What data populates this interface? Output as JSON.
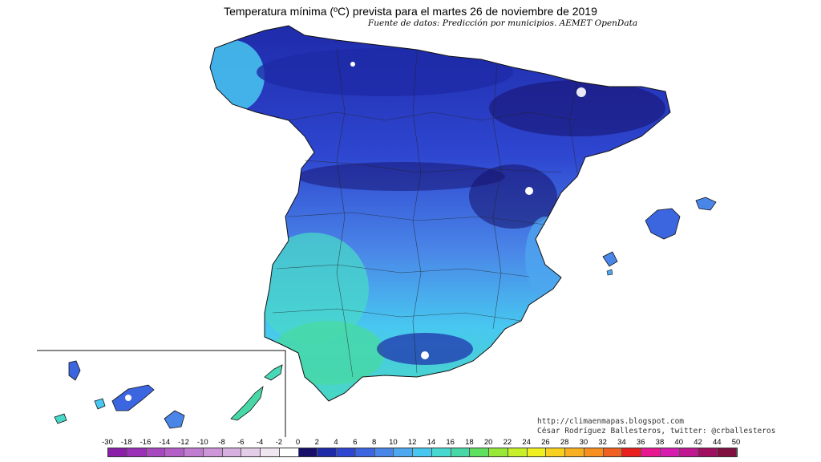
{
  "header": {
    "title": "Temperatura mínima (ºC) prevista para el martes 26 de noviembre de 2019",
    "source": "Fuente de datos: Predicción por municipios. AEMET OpenData"
  },
  "credits": {
    "blog": "http://climaenmapas.blogspot.com",
    "author": "César Rodríguez Ballesteros, twitter: @crballesteros"
  },
  "legend": {
    "ticks": [
      "-30",
      "-18",
      "-16",
      "-14",
      "-12",
      "-10",
      "-8",
      "-6",
      "-4",
      "-2",
      "0",
      "2",
      "4",
      "6",
      "8",
      "10",
      "12",
      "14",
      "16",
      "18",
      "20",
      "22",
      "24",
      "26",
      "28",
      "30",
      "32",
      "34",
      "36",
      "38",
      "40",
      "42",
      "44",
      "50"
    ],
    "colors": [
      "#8b1fa9",
      "#9b30b8",
      "#a848c0",
      "#b45fc8",
      "#c07cd0",
      "#cc96d8",
      "#d8b0e0",
      "#e4cde8",
      "#f0e6f2",
      "#ffffff",
      "#16106a",
      "#1e2aa8",
      "#2e46d0",
      "#3c66e0",
      "#4a86e8",
      "#4ea8f0",
      "#48c8f0",
      "#48d8d0",
      "#48d8a8",
      "#60e060",
      "#98e838",
      "#c8f028",
      "#f0f020",
      "#f8d020",
      "#f8b020",
      "#f89020",
      "#f06020",
      "#e82020",
      "#e81890",
      "#d81cb0",
      "#c01890",
      "#a01060",
      "#801040"
    ]
  },
  "map": {
    "regions": [
      "Península Ibérica",
      "Islas Baleares",
      "Islas Canarias"
    ]
  }
}
